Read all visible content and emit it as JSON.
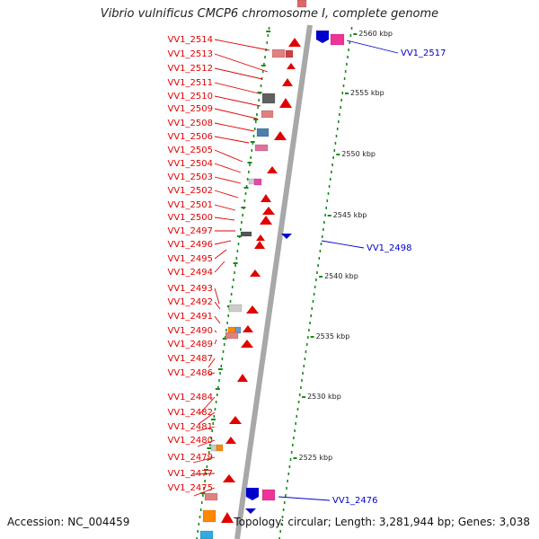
{
  "title": "Vibrio vulnificus CMCP6 chromosome I, complete genome",
  "footer": {
    "accession": "Accession: NC_004459",
    "topology": "Topology: circular; Length: 3,281,944 bp; Genes: 3,038"
  },
  "colors": {
    "left_strand": "#e00000",
    "right_strand": "#0000cc",
    "backbone": "#a8a8a8",
    "ticks": "#1a8a1a"
  },
  "kbp_ticks": [
    "2560 kbp",
    "2555 kbp",
    "2550 kbp",
    "2545 kbp",
    "2540 kbp",
    "2535 kbp",
    "2530 kbp",
    "2525 kbp"
  ],
  "left_genes": [
    "VV1_2514",
    "VV1_2513",
    "VV1_2512",
    "VV1_2511",
    "VV1_2510",
    "VV1_2509",
    "VV1_2508",
    "VV1_2506",
    "VV1_2505",
    "VV1_2504",
    "VV1_2503",
    "VV1_2502",
    "VV1_2501",
    "VV1_2500",
    "VV1_2497",
    "VV1_2496",
    "VV1_2495",
    "VV1_2494",
    "VV1_2493",
    "VV1_2492",
    "VV1_2491",
    "VV1_2490",
    "VV1_2489",
    "VV1_2487",
    "VV1_2486",
    "VV1_2484",
    "VV1_2482",
    "VV1_2481",
    "VV1_2480",
    "VV1_2479",
    "VV1_2477",
    "VV1_2475"
  ],
  "right_genes": [
    "VV1_2517",
    "VV1_2498",
    "VV1_2476"
  ]
}
